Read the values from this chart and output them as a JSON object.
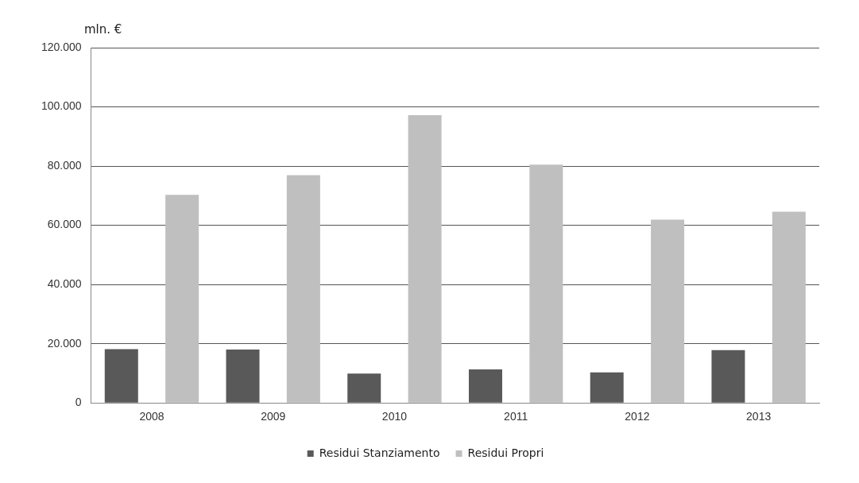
{
  "chart_data": {
    "type": "bar",
    "ylabel": "mln. €",
    "categories": [
      "2008",
      "2009",
      "2010",
      "2011",
      "2012",
      "2013"
    ],
    "series": [
      {
        "name": "Residui Stanziamento",
        "color": "#595959",
        "values": [
          18200,
          18000,
          9900,
          11300,
          10300,
          17800
        ]
      },
      {
        "name": "Residui Propri",
        "color": "#bfbfbf",
        "values": [
          70300,
          76900,
          97200,
          80500,
          61900,
          64600
        ]
      }
    ],
    "ylim": [
      0,
      120000
    ],
    "yticks": [
      {
        "value": 0,
        "label": "0"
      },
      {
        "value": 20000,
        "label": "20.000"
      },
      {
        "value": 40000,
        "label": "40.000"
      },
      {
        "value": 60000,
        "label": "60.000"
      },
      {
        "value": 80000,
        "label": "80.000"
      },
      {
        "value": 100000,
        "label": "100.000"
      },
      {
        "value": 120000,
        "label": "120.000"
      }
    ],
    "grid": "y",
    "legend": "bottom"
  }
}
